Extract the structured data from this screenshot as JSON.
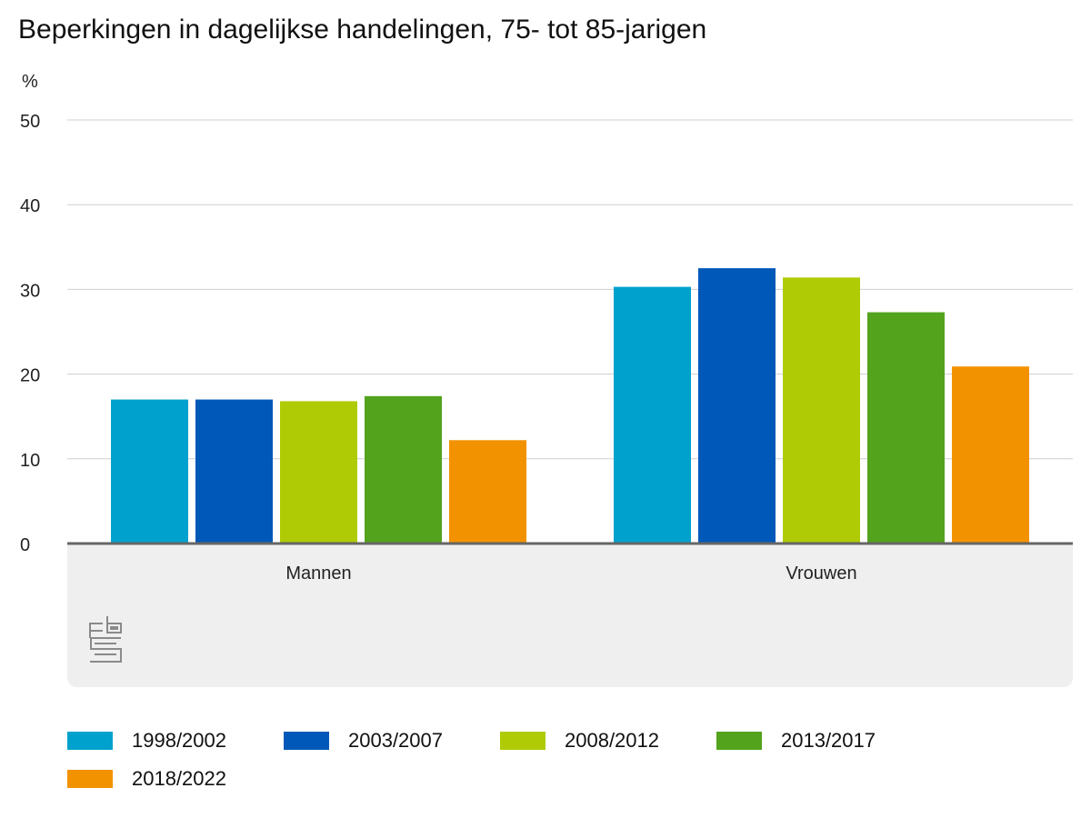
{
  "chart_data": {
    "type": "bar",
    "title": "Beperkingen in dagelijkse handelingen, 75- tot 85-jarigen",
    "ylabel": "%",
    "xlabel": "",
    "ylim": [
      0,
      50
    ],
    "yticks": [
      0,
      10,
      20,
      30,
      40,
      50
    ],
    "grid": true,
    "legend_position": "bottom",
    "categories": [
      "Mannen",
      "Vrouwen"
    ],
    "series": [
      {
        "name": "1998/2002",
        "color": "#00a1cd",
        "values": [
          17.0,
          30.3
        ]
      },
      {
        "name": "2003/2007",
        "color": "#0058b8",
        "values": [
          17.0,
          32.5
        ]
      },
      {
        "name": "2008/2012",
        "color": "#afcb05",
        "values": [
          16.8,
          31.4
        ]
      },
      {
        "name": "2013/2017",
        "color": "#53a31d",
        "values": [
          17.4,
          27.3
        ]
      },
      {
        "name": "2018/2022",
        "color": "#f39200",
        "values": [
          12.2,
          20.9
        ]
      }
    ]
  },
  "logo": {
    "name": "cbs-logo",
    "text": "cbs"
  }
}
